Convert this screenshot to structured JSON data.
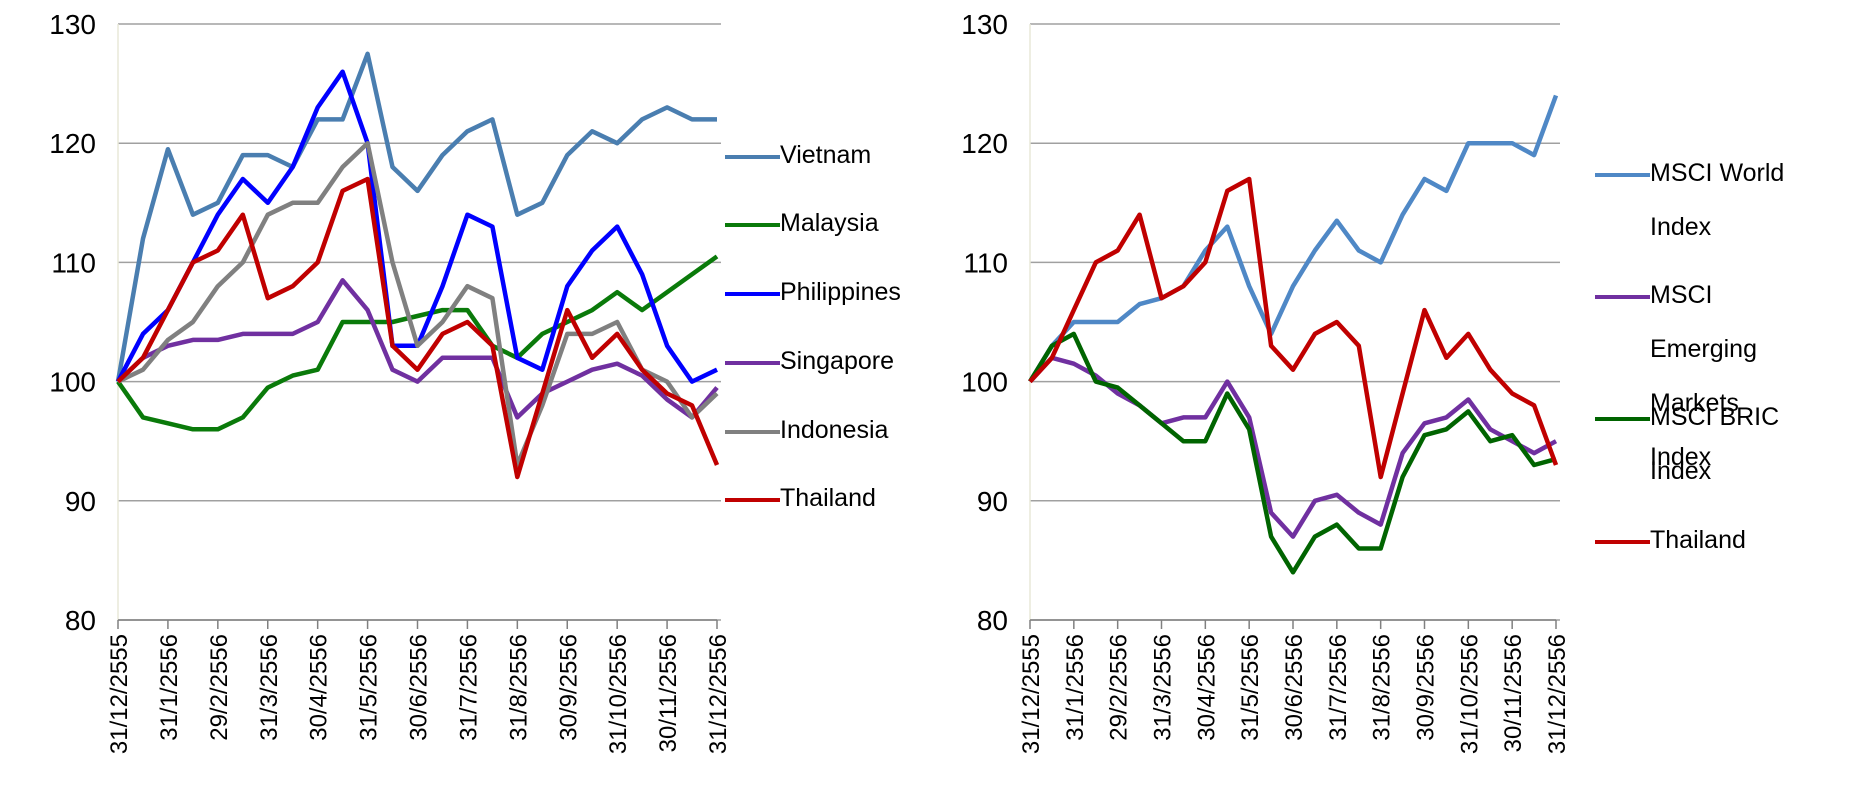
{
  "chart_data": [
    {
      "type": "line",
      "categories": [
        "31/12/2555",
        null,
        "31/1/2556",
        null,
        "29/2/2556",
        null,
        "31/3/2556",
        null,
        "30/4/2556",
        null,
        "31/5/2556",
        null,
        "30/6/2556",
        null,
        "31/7/2556",
        null,
        "31/8/2556",
        null,
        "30/9/2556",
        null,
        "31/10/2556",
        null,
        "30/11/2556",
        null,
        "31/12/2556"
      ],
      "ylim": [
        80,
        130
      ],
      "yticks": [
        80,
        90,
        100,
        110,
        120,
        130
      ],
      "grid": true,
      "legend": "right",
      "series": [
        {
          "name": "Vietnam",
          "color": "#4a7eb0",
          "values": [
            100,
            112,
            119.5,
            114,
            115,
            119,
            119,
            118,
            122,
            122,
            127.5,
            118,
            116,
            119,
            121,
            122,
            114,
            115,
            119,
            121,
            120,
            122,
            123,
            122,
            122
          ]
        },
        {
          "name": "Malaysia",
          "color": "#0a7a0a",
          "values": [
            100,
            97,
            96.5,
            96,
            96,
            97,
            99.5,
            100.5,
            101,
            105,
            105,
            105,
            105.5,
            106,
            106,
            103,
            102,
            104,
            105,
            106,
            107.5,
            106,
            107.5,
            109,
            110.5
          ]
        },
        {
          "name": "Philippines",
          "color": "#0000ff",
          "values": [
            100,
            104,
            106,
            110,
            114,
            117,
            115,
            118,
            123,
            126,
            120,
            103,
            103,
            108,
            114,
            113,
            102,
            101,
            108,
            111,
            113,
            109,
            103,
            100,
            101
          ]
        },
        {
          "name": "Singapore",
          "color": "#7030a0",
          "values": [
            100,
            102,
            103,
            103.5,
            103.5,
            104,
            104,
            104,
            105,
            108.5,
            106,
            101,
            100,
            102,
            102,
            102,
            97,
            99,
            100,
            101,
            101.5,
            100.5,
            98.5,
            97,
            99.5
          ]
        },
        {
          "name": "Indonesia",
          "color": "#808080",
          "values": [
            100,
            101,
            103.5,
            105,
            108,
            110,
            114,
            115,
            115,
            118,
            120,
            110,
            103,
            105,
            108,
            107,
            93,
            98,
            104,
            104,
            105,
            101,
            100,
            97,
            99
          ]
        },
        {
          "name": "Thailand",
          "color": "#c00000",
          "values": [
            100,
            102,
            106,
            110,
            111,
            114,
            107,
            108,
            110,
            116,
            117,
            103,
            101,
            104,
            105,
            103,
            92,
            99,
            106,
            102,
            104,
            101,
            99,
            98,
            93
          ]
        }
      ]
    },
    {
      "type": "line",
      "categories": [
        "31/12/2555",
        null,
        "31/1/2556",
        null,
        "29/2/2556",
        null,
        "31/3/2556",
        null,
        "30/4/2556",
        null,
        "31/5/2556",
        null,
        "30/6/2556",
        null,
        "31/7/2556",
        null,
        "31/8/2556",
        null,
        "30/9/2556",
        null,
        "31/10/2556",
        null,
        "30/11/2556",
        null,
        "31/12/2556"
      ],
      "ylim": [
        80,
        130
      ],
      "yticks": [
        80,
        90,
        100,
        110,
        120,
        130
      ],
      "grid": true,
      "legend": "right",
      "series": [
        {
          "name": "MSCI World Index",
          "color": "#4f88c6",
          "values": [
            100,
            103,
            105,
            105,
            105,
            106.5,
            107,
            108,
            111,
            113,
            108,
            104,
            108,
            111,
            113.5,
            111,
            110,
            114,
            117,
            116,
            120,
            120,
            120,
            119,
            124
          ]
        },
        {
          "name": "MSCI Emerging Markets Index",
          "color": "#7030a0",
          "values": [
            100,
            102,
            101.5,
            100.5,
            99,
            98,
            96.5,
            97,
            97,
            100,
            97,
            89,
            87,
            90,
            90.5,
            89,
            88,
            94,
            96.5,
            97,
            98.5,
            96,
            95,
            94,
            95
          ]
        },
        {
          "name": "MSCI BRIC Index",
          "color": "#006400",
          "values": [
            100,
            103,
            104,
            100,
            99.5,
            98,
            96.5,
            95,
            95,
            99,
            96,
            87,
            84,
            87,
            88,
            86,
            86,
            92,
            95.5,
            96,
            97.5,
            95,
            95.5,
            93,
            93.5
          ]
        },
        {
          "name": "Thailand",
          "color": "#c00000",
          "values": [
            100,
            102,
            106,
            110,
            111,
            114,
            107,
            108,
            110,
            116,
            117,
            103,
            101,
            104,
            105,
            103,
            92,
            99,
            106,
            102,
            104,
            101,
            99,
            98,
            93
          ]
        }
      ]
    }
  ]
}
